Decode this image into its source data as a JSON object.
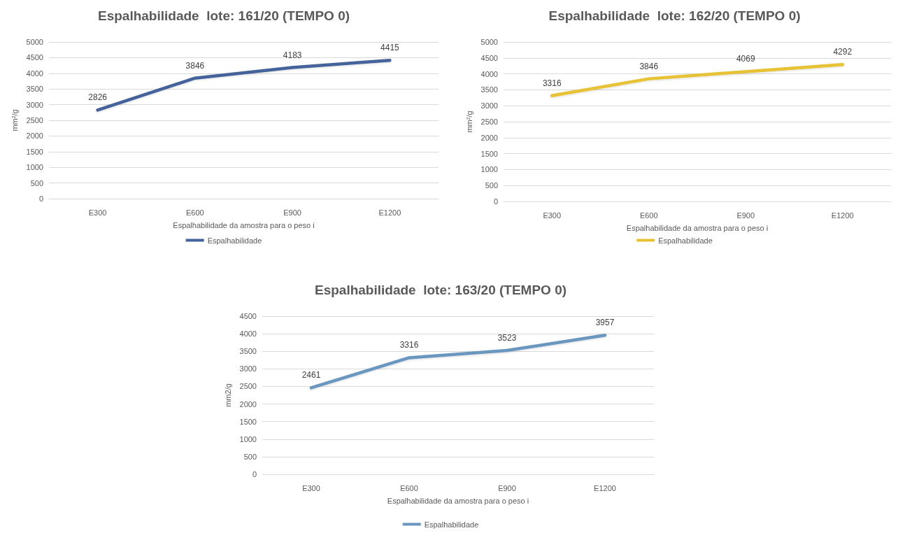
{
  "chart_data": [
    {
      "type": "line",
      "title": "Espalhabilidade  lote: 161/20 (TEMPO 0)",
      "xlabel": "Espalhabilidade da amostra para o peso i",
      "ylabel": "mm²/g",
      "categories": [
        "E300",
        "E600",
        "E900",
        "E1200"
      ],
      "series": [
        {
          "name": "Espalhabilidade",
          "color": "#44639a",
          "values": [
            2826,
            3846,
            4183,
            4415
          ]
        }
      ],
      "ylim": [
        0,
        5000
      ],
      "yticks": [
        0,
        500,
        1000,
        1500,
        2000,
        2500,
        3000,
        3500,
        4000,
        4500,
        5000
      ],
      "grid": "y",
      "legend": "bottom",
      "data_labels": true,
      "marker": "none",
      "line_style": "solid"
    },
    {
      "type": "line",
      "title": "Espalhabilidade  lote: 162/20 (TEMPO 0)",
      "xlabel": "Espalhabilidade da amostra para o peso i",
      "ylabel": "mm²/g",
      "categories": [
        "E300",
        "E600",
        "E900",
        "E1200"
      ],
      "series": [
        {
          "name": "Espalhabilidade",
          "color": "#e8c234",
          "values": [
            3316,
            3846,
            4069,
            4292
          ]
        }
      ],
      "ylim": [
        0,
        5000
      ],
      "yticks": [
        0,
        500,
        1000,
        1500,
        2000,
        2500,
        3000,
        3500,
        4000,
        4500,
        5000
      ],
      "grid": "y",
      "legend": "bottom",
      "data_labels": true,
      "marker": "none",
      "line_style": "solid"
    },
    {
      "type": "line",
      "title": "Espalhabilidade  lote: 163/20 (TEMPO 0)",
      "xlabel": "Espalhabilidade da amostra para o peso i",
      "ylabel": "mm2/g",
      "categories": [
        "E300",
        "E600",
        "E900",
        "E1200"
      ],
      "series": [
        {
          "name": "Espalhabilidade",
          "color": "#6b97bf",
          "values": [
            2461,
            3316,
            3523,
            3957
          ]
        }
      ],
      "ylim": [
        0,
        4500
      ],
      "yticks": [
        0,
        500,
        1000,
        1500,
        2000,
        2500,
        3000,
        3500,
        4000,
        4500
      ],
      "grid": "y",
      "legend": "bottom",
      "data_labels": true,
      "marker": "none",
      "line_style": "solid"
    }
  ]
}
